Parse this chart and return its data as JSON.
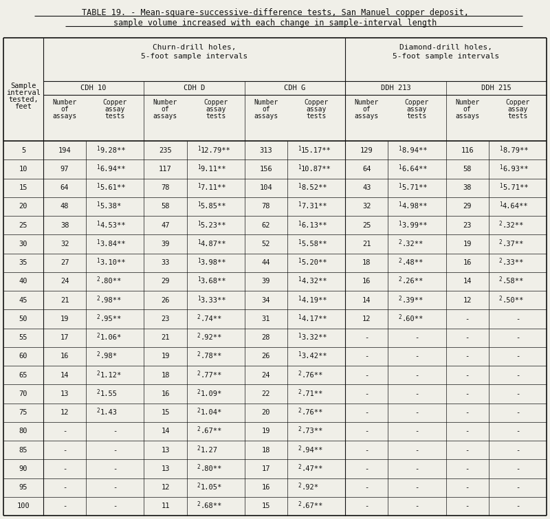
{
  "title_line1": "TABLE 19. - Mean-square-successive-difference tests, San Manuel copper deposit,",
  "title_line2": "sample volume increased with each change in sample-interval length",
  "rows": [
    [
      "5",
      "194",
      "1",
      "9.28**",
      "235",
      "1",
      "12.79**",
      "313",
      "1",
      "15.17**",
      "129",
      "1",
      "8.94**",
      "116",
      "1",
      "8.79**"
    ],
    [
      "10",
      "97",
      "1",
      "6.94**",
      "117",
      "1",
      "9.11**",
      "156",
      "1",
      "10.87**",
      "64",
      "1",
      "6.64**",
      "58",
      "1",
      "6.93**"
    ],
    [
      "15",
      "64",
      "1",
      "5.61**",
      "78",
      "1",
      "7.11**",
      "104",
      "1",
      "8.52**",
      "43",
      "1",
      "5.71**",
      "38",
      "1",
      "5.71**"
    ],
    [
      "20",
      "48",
      "1",
      "5.38*",
      "58",
      "1",
      "5.85**",
      "78",
      "1",
      "7.31**",
      "32",
      "1",
      "4.98**",
      "29",
      "1",
      "4.64**"
    ],
    [
      "25",
      "38",
      "1",
      "4.53**",
      "47",
      "1",
      "5.23**",
      "62",
      "1",
      "6.13**",
      "25",
      "1",
      "3.99**",
      "23",
      "2",
      ".32**"
    ],
    [
      "30",
      "32",
      "1",
      "3.84**",
      "39",
      "1",
      "4.87**",
      "52",
      "1",
      "5.58**",
      "21",
      "2",
      ".32**",
      "19",
      "2",
      ".37**"
    ],
    [
      "35",
      "27",
      "1",
      "3.10**",
      "33",
      "1",
      "3.98**",
      "44",
      "1",
      "5.20**",
      "18",
      "2",
      ".48**",
      "16",
      "2",
      ".33**"
    ],
    [
      "40",
      "24",
      "2",
      ".80**",
      "29",
      "1",
      "3.68**",
      "39",
      "1",
      "4.32**",
      "16",
      "2",
      ".26**",
      "14",
      "2",
      ".58**"
    ],
    [
      "45",
      "21",
      "2",
      ".98**",
      "26",
      "1",
      "3.33**",
      "34",
      "1",
      "4.19**",
      "14",
      "2",
      ".39**",
      "12",
      "2",
      ".50**"
    ],
    [
      "50",
      "19",
      "2",
      ".95**",
      "23",
      "2",
      ".74**",
      "31",
      "1",
      "4.17**",
      "12",
      "2",
      ".60**",
      "-",
      "",
      "-"
    ],
    [
      "55",
      "17",
      "2",
      "1.06*",
      "21",
      "2",
      ".92**",
      "28",
      "1",
      "3.32**",
      "-",
      "",
      "-",
      "-",
      "",
      "-"
    ],
    [
      "60",
      "16",
      "2",
      ".98*",
      "19",
      "2",
      ".78**",
      "26",
      "1",
      "3.42**",
      "-",
      "",
      "-",
      "-",
      "",
      "-"
    ],
    [
      "65",
      "14",
      "2",
      "1.12*",
      "18",
      "2",
      ".77**",
      "24",
      "2",
      ".76**",
      "-",
      "",
      "-",
      "-",
      "",
      "-"
    ],
    [
      "70",
      "13",
      "2",
      "1.55",
      "16",
      "2",
      "1.09*",
      "22",
      "2",
      ".71**",
      "-",
      "",
      "-",
      "-",
      "",
      "-"
    ],
    [
      "75",
      "12",
      "2",
      "1.43",
      "15",
      "2",
      "1.04*",
      "20",
      "2",
      ".76**",
      "-",
      "",
      "-",
      "-",
      "",
      "-"
    ],
    [
      "80",
      "-",
      "",
      "-",
      "14",
      "2",
      ".67**",
      "19",
      "2",
      ".73**",
      "-",
      "",
      "-",
      "-",
      "",
      "-"
    ],
    [
      "85",
      "-",
      "",
      "-",
      "13",
      "2",
      "1.27",
      "18",
      "2",
      ".94**",
      "-",
      "",
      "-",
      "-",
      "",
      "-"
    ],
    [
      "90",
      "-",
      "",
      "-",
      "13",
      "2",
      ".80**",
      "17",
      "2",
      ".47**",
      "-",
      "",
      "-",
      "-",
      "",
      "-"
    ],
    [
      "95",
      "-",
      "",
      "-",
      "12",
      "2",
      "1.05*",
      "16",
      "2",
      ".92*",
      "-",
      "",
      "-",
      "-",
      "",
      "-"
    ],
    [
      "100",
      "-",
      "",
      "-",
      "11",
      "2",
      ".68**",
      "15",
      "2",
      ".67**",
      "-",
      "",
      "-",
      "-",
      "",
      "-"
    ]
  ],
  "bg_color": "#f0efe8",
  "text_color": "#111111"
}
